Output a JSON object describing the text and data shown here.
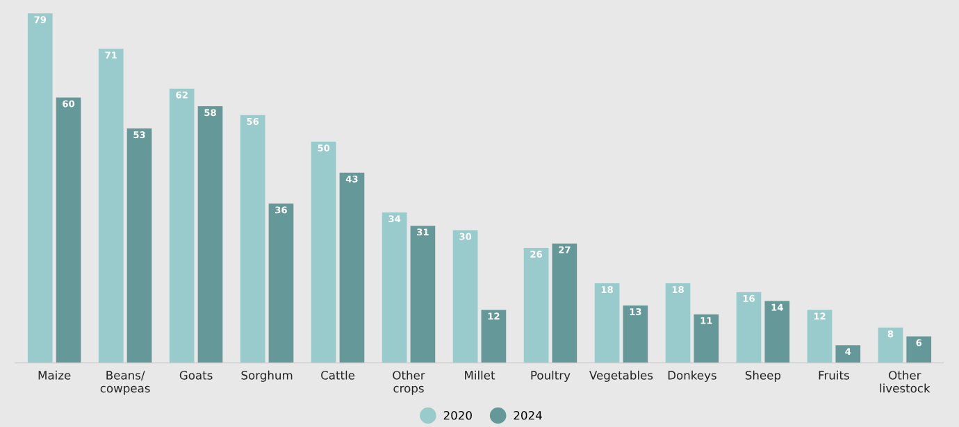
{
  "chart_data": {
    "type": "bar",
    "categories": [
      "Maize",
      "Beans/\ncowpeas",
      "Goats",
      "Sorghum",
      "Cattle",
      "Other\ncrops",
      "Millet",
      "Poultry",
      "Vegetables",
      "Donkeys",
      "Sheep",
      "Fruits",
      "Other\nlivestock"
    ],
    "series": [
      {
        "name": "2020",
        "color": "#99cbcc",
        "values": [
          79,
          71,
          62,
          56,
          50,
          34,
          30,
          26,
          18,
          18,
          16,
          12,
          8
        ]
      },
      {
        "name": "2024",
        "color": "#659999",
        "values": [
          60,
          53,
          58,
          36,
          43,
          31,
          12,
          27,
          13,
          11,
          14,
          4,
          6
        ]
      }
    ],
    "data_labels": true,
    "legend": "bottom",
    "grid": false
  }
}
